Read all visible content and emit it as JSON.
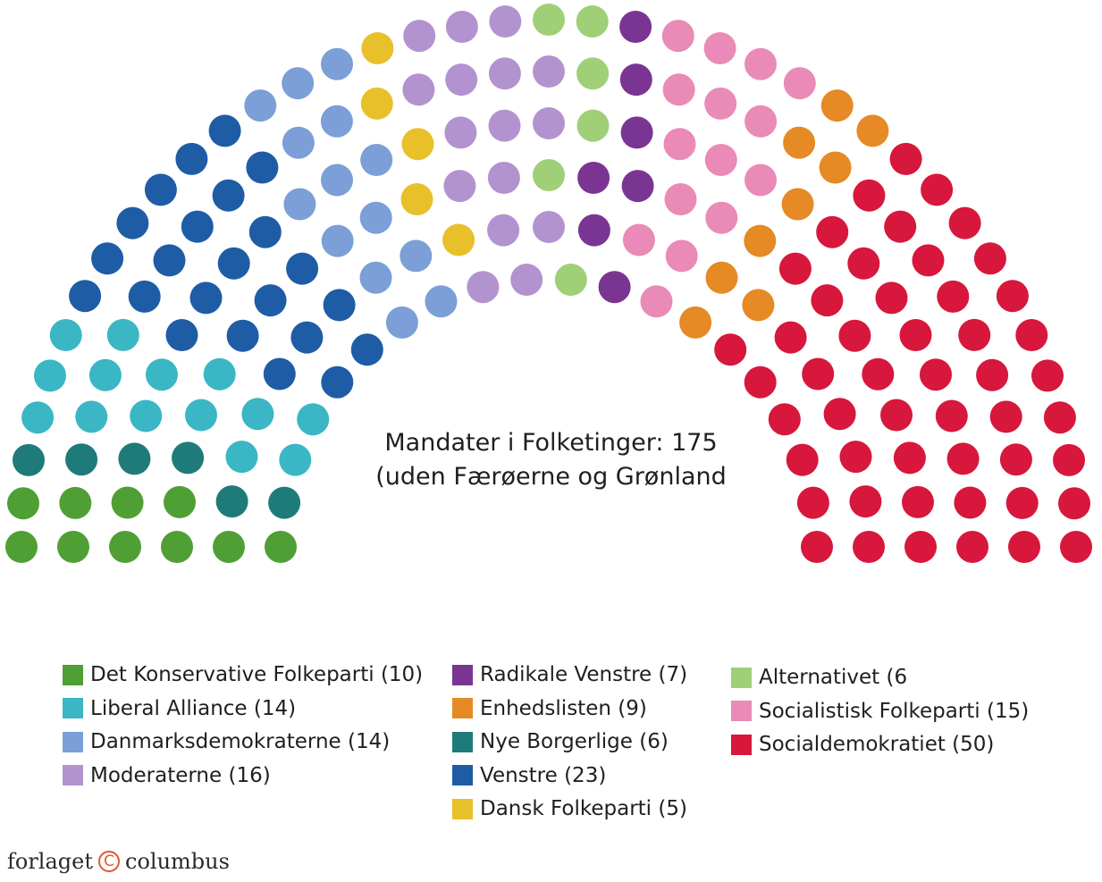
{
  "chart_data": {
    "type": "parliament",
    "title": "Mandater i Folketinger: 175",
    "subtitle": "(uden Færøerne og Grønland",
    "total_seats": 175,
    "series": [
      {
        "name": "Det Konservative Folkeparti",
        "label": "Det Konservative Folkeparti (10)",
        "seats": 10,
        "color": "#4f9f35"
      },
      {
        "name": "Nye Borgerlige",
        "label": "Nye Borgerlige (6)",
        "seats": 6,
        "color": "#1f7b79"
      },
      {
        "name": "Liberal Alliance",
        "label": "Liberal Alliance (14)",
        "seats": 14,
        "color": "#3bb6c4"
      },
      {
        "name": "Venstre",
        "label": "Venstre (23)",
        "seats": 23,
        "color": "#1f5ca6"
      },
      {
        "name": "Danmarksdemokraterne",
        "label": "Danmarksdemokraterne (14)",
        "seats": 14,
        "color": "#7b9fd6"
      },
      {
        "name": "Dansk Folkeparti",
        "label": "Dansk Folkeparti (5)",
        "seats": 5,
        "color": "#e8c02a"
      },
      {
        "name": "Moderaterne",
        "label": "Moderaterne (16)",
        "seats": 16,
        "color": "#b393cf"
      },
      {
        "name": "Alternativet",
        "label": "Alternativet (6",
        "seats": 6,
        "color": "#9fcf77"
      },
      {
        "name": "Radikale Venstre",
        "label": "Radikale Venstre (7)",
        "seats": 7,
        "color": "#7a3592"
      },
      {
        "name": "Socialistisk Folkeparti",
        "label": "Socialistisk Folkeparti (15)",
        "seats": 15,
        "color": "#e98bb6"
      },
      {
        "name": "Enhedslisten",
        "label": "Enhedslisten (9)",
        "seats": 9,
        "color": "#e58a24"
      },
      {
        "name": "Socialdemokratiet",
        "label": "Socialdemokratiet (50)",
        "seats": 50,
        "color": "#d7173b"
      }
    ],
    "legend_placement": "bottom"
  },
  "legend_columns": [
    [
      "Det Konservative Folkeparti",
      "Liberal Alliance",
      "Danmarksdemokraterne",
      "Moderaterne"
    ],
    [
      "Radikale Venstre",
      "Enhedslisten",
      "Nye Borgerlige",
      "Venstre",
      "Dansk Folkeparti"
    ],
    [
      "Alternativet",
      "Socialistisk Folkeparti",
      "Socialdemokratiet"
    ]
  ],
  "publisher": {
    "left": "forlaget",
    "icon": "copyright-icon",
    "symbol": "C",
    "right": "columbus"
  }
}
